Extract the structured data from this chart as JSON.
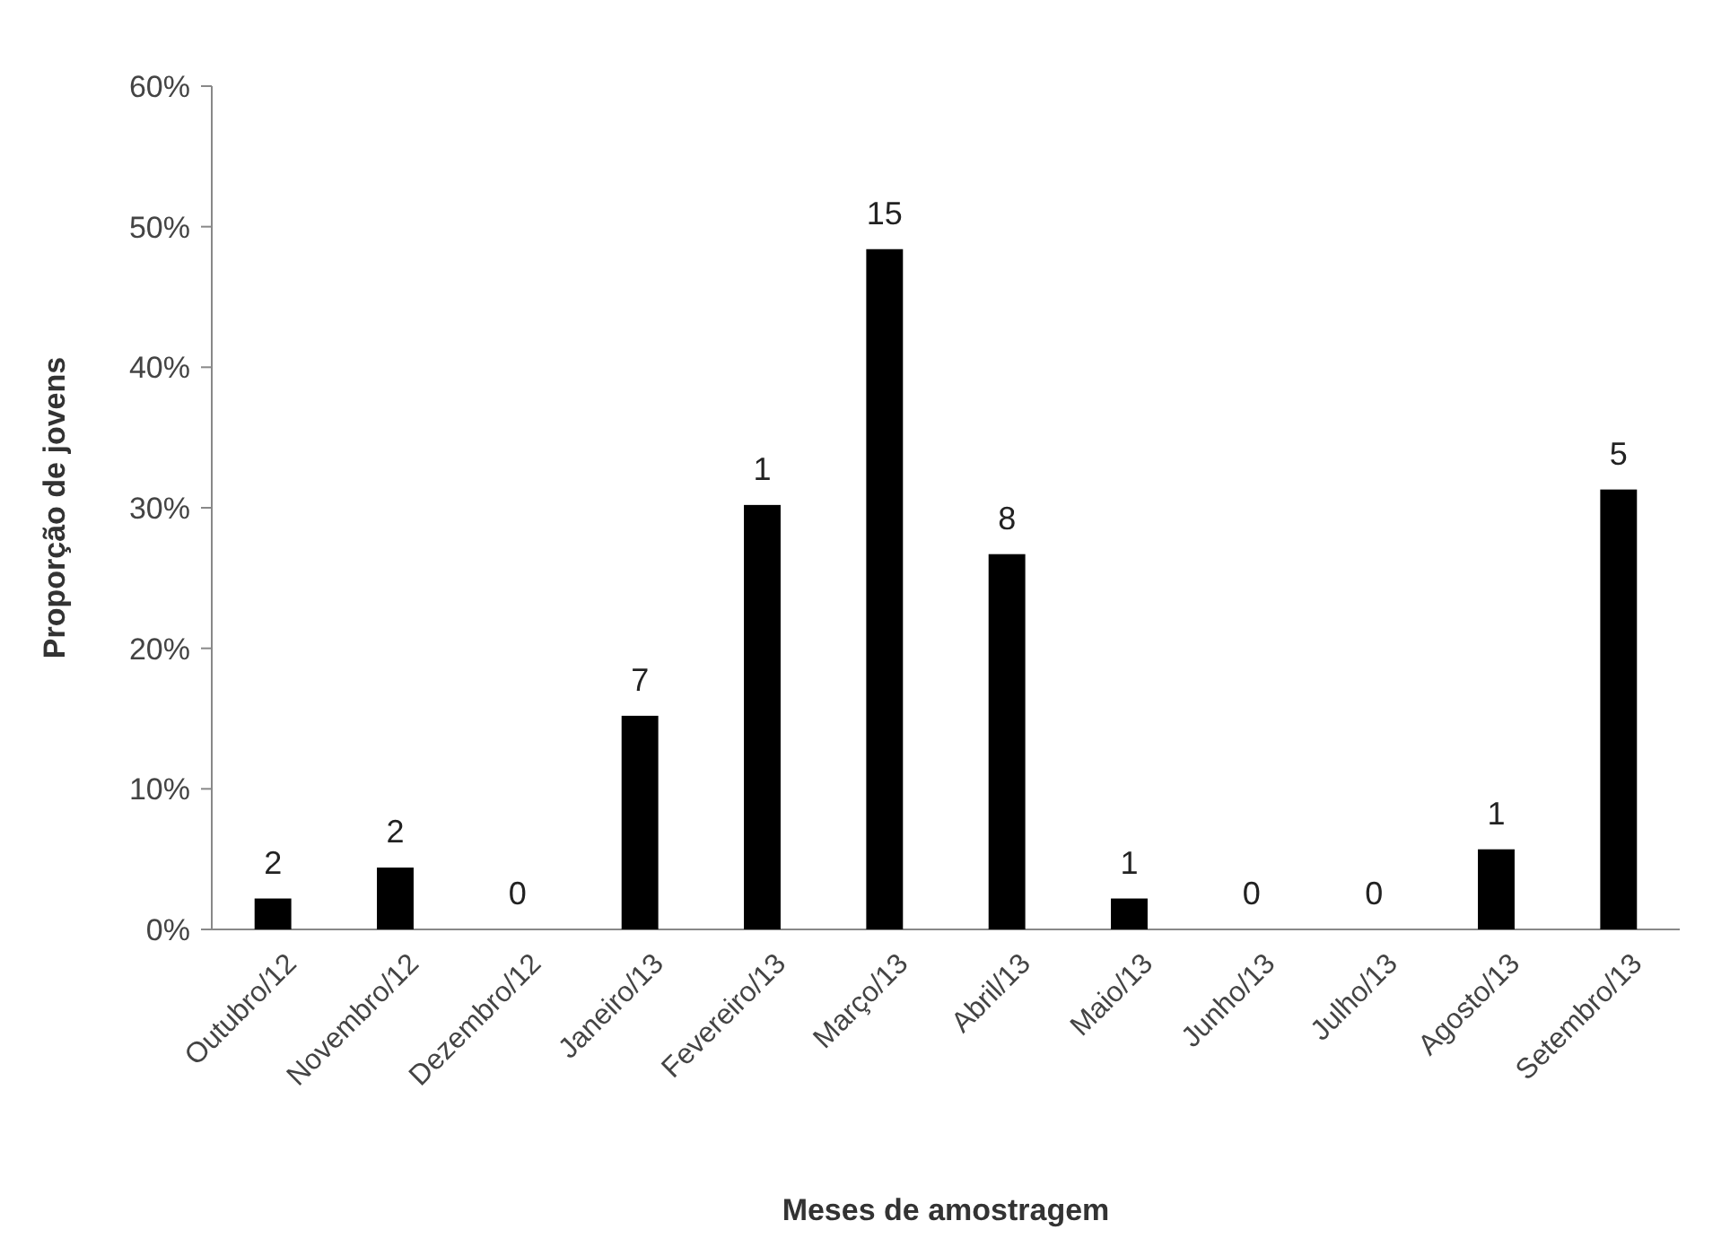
{
  "chart_data": {
    "type": "bar",
    "xlabel": "Meses de amostragem",
    "ylabel": "Proporção de jovens",
    "categories": [
      "Outubro/12",
      "Novembro/12",
      "Dezembro/12",
      "Janeiro/13",
      "Fevereiro/13",
      "Março/13",
      "Abril/13",
      "Maio/13",
      "Junho/13",
      "Julho/13",
      "Agosto/13",
      "Setembro/13"
    ],
    "values": [
      2.2,
      4.4,
      0,
      15.2,
      30.2,
      48.4,
      26.7,
      2.2,
      0,
      0,
      5.7,
      31.3
    ],
    "annotations": [
      {
        "text": "2",
        "x": "Outubro/12",
        "y": 2.2
      },
      {
        "text": "2",
        "x": "Novembro/12",
        "y": 4.4
      },
      {
        "text": "0",
        "x": "Dezembro/12",
        "y": 0
      },
      {
        "text": "7",
        "x": "Janeiro/13",
        "y": 15.2
      },
      {
        "text": "1",
        "x": "Fevereiro/13",
        "y": 30.2
      },
      {
        "text": "15",
        "x": "Março/13",
        "y": 48.4
      },
      {
        "text": "8",
        "x": "Abril/13",
        "y": 26.7
      },
      {
        "text": "1",
        "x": "Maio/13",
        "y": 2.2
      },
      {
        "text": "0",
        "x": "Junho/13",
        "y": 0
      },
      {
        "text": "0",
        "x": "Julho/13",
        "y": 0
      },
      {
        "text": "1",
        "x": "Agosto/13",
        "y": 5.7
      },
      {
        "text": "5",
        "x": "Setembro/13",
        "y": 31.3
      }
    ],
    "color": "#000000",
    "ylim": [
      0,
      60
    ],
    "yticks": [
      {
        "value": 0,
        "label": "0%"
      },
      {
        "value": 10,
        "label": "10%"
      },
      {
        "value": 20,
        "label": "20%"
      },
      {
        "value": 30,
        "label": "30%"
      },
      {
        "value": 40,
        "label": "40%"
      },
      {
        "value": 50,
        "label": "50%"
      },
      {
        "value": 60,
        "label": "60%"
      }
    ],
    "grid": false
  }
}
